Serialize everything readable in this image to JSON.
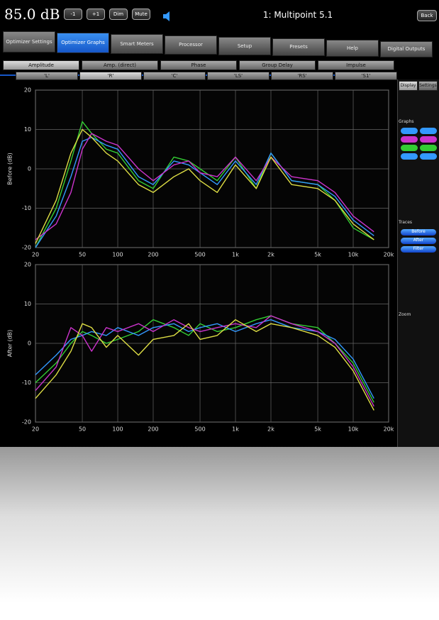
{
  "ui": {
    "level": "85.0 dB",
    "buttons": [
      "-1",
      "+1",
      "Dim",
      "Mute"
    ],
    "title": "1: Multipoint 5.1",
    "back": "Back",
    "tabs": [
      "Optimizer Settings",
      "Optimizer Graphs",
      "Smart Meters",
      "Processor",
      "Setup",
      "Presets",
      "Help",
      "Digital Outputs"
    ],
    "subtabs": [
      "Amplitude",
      "Amp. (direct)",
      "Phase",
      "Group Delay",
      "Impulse"
    ],
    "channels": [
      "'L'",
      "'R'",
      "'C'",
      "'LS'",
      "'RS'",
      "'S1'"
    ],
    "panel": {
      "tabs": [
        "Display",
        "Settings"
      ],
      "graphs": "Graphs",
      "traces": "Traces",
      "trace_buttons": [
        "Before",
        "After",
        "Filter"
      ],
      "zoom": "Zoom"
    }
  },
  "chart_data": [
    {
      "type": "line",
      "y_label": "Before (dB)",
      "xscale": "log",
      "grid": true,
      "x": [
        20,
        30,
        40,
        50,
        60,
        80,
        100,
        150,
        200,
        300,
        400,
        500,
        700,
        1000,
        1500,
        2000,
        3000,
        5000,
        7000,
        10000,
        15000
      ],
      "xlim": [
        20,
        20000
      ],
      "xticks": [
        20,
        50,
        100,
        200,
        500,
        {
          "value": 1000,
          "label": "1k"
        },
        {
          "value": 2000,
          "label": "2k"
        },
        {
          "value": 5000,
          "label": "5k"
        },
        {
          "value": 10000,
          "label": "10k"
        },
        {
          "value": 20000,
          "label": "20k"
        }
      ],
      "ylim": [
        -20,
        20
      ],
      "yticks": [
        -20,
        -10,
        0,
        10,
        20
      ],
      "series": [
        {
          "color": "#33cc33",
          "values": [
            -20,
            -10,
            2,
            12,
            9,
            5,
            4,
            -3,
            -5,
            3,
            2,
            0,
            -3,
            3,
            -5,
            4,
            -3,
            -4,
            -8,
            -15,
            -18
          ]
        },
        {
          "color": "#3399ff",
          "values": [
            -20,
            -12,
            -2,
            7,
            8,
            6,
            5,
            -2,
            -4,
            2,
            1,
            -1,
            -4,
            2,
            -4,
            4,
            -3,
            -4,
            -7,
            -13,
            -17
          ]
        },
        {
          "color": "#cc33cc",
          "values": [
            -18,
            -14,
            -6,
            5,
            9,
            7,
            6,
            0,
            -3,
            1,
            2,
            -1,
            -2,
            3,
            -3,
            3,
            -2,
            -3,
            -6,
            -12,
            -16
          ]
        },
        {
          "color": "#dddd44",
          "values": [
            -19,
            -8,
            4,
            10,
            8,
            4,
            2,
            -4,
            -6,
            -2,
            0,
            -3,
            -6,
            1,
            -5,
            3,
            -4,
            -5,
            -8,
            -14,
            -18
          ]
        }
      ]
    },
    {
      "type": "line",
      "y_label": "After (dB)",
      "xscale": "log",
      "grid": true,
      "x": [
        20,
        30,
        40,
        50,
        60,
        80,
        100,
        150,
        200,
        300,
        400,
        500,
        700,
        1000,
        1500,
        2000,
        3000,
        5000,
        7000,
        10000,
        15000
      ],
      "xlim": [
        20,
        20000
      ],
      "xticks": [
        20,
        50,
        100,
        200,
        500,
        {
          "value": 1000,
          "label": "1k"
        },
        {
          "value": 2000,
          "label": "2k"
        },
        {
          "value": 5000,
          "label": "5k"
        },
        {
          "value": 10000,
          "label": "10k"
        },
        {
          "value": 20000,
          "label": "20k"
        }
      ],
      "ylim": [
        -20,
        20
      ],
      "yticks": [
        -20,
        -10,
        0,
        10,
        20
      ],
      "series": [
        {
          "color": "#33cc33",
          "values": [
            -10,
            -5,
            0,
            3,
            2,
            0,
            1,
            3,
            6,
            4,
            2,
            5,
            3,
            4,
            6,
            7,
            5,
            4,
            0,
            -5,
            -15
          ]
        },
        {
          "color": "#3399ff",
          "values": [
            -8,
            -3,
            1,
            2,
            3,
            2,
            4,
            2,
            4,
            5,
            3,
            4,
            5,
            3,
            5,
            6,
            4,
            3,
            1,
            -4,
            -14
          ]
        },
        {
          "color": "#cc33cc",
          "values": [
            -12,
            -6,
            4,
            2,
            -2,
            4,
            3,
            5,
            3,
            6,
            4,
            3,
            4,
            5,
            4,
            7,
            5,
            3,
            0,
            -6,
            -16
          ]
        },
        {
          "color": "#dddd44",
          "values": [
            -14,
            -8,
            -2,
            5,
            4,
            -1,
            2,
            -3,
            1,
            2,
            5,
            1,
            2,
            6,
            3,
            5,
            4,
            2,
            -1,
            -7,
            -17
          ]
        }
      ]
    }
  ]
}
